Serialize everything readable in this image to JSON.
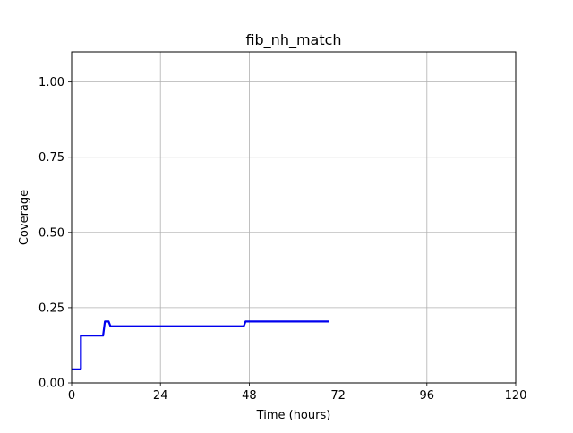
{
  "chart_data": {
    "type": "line",
    "title": "fib_nh_match",
    "xlabel": "Time (hours)",
    "ylabel": "Coverage",
    "xlim": [
      0,
      120
    ],
    "ylim": [
      0,
      1.1
    ],
    "xticks": [
      0,
      24,
      48,
      72,
      96,
      120
    ],
    "xtick_labels": [
      "0",
      "24",
      "48",
      "72",
      "96",
      "120"
    ],
    "yticks": [
      0.0,
      0.25,
      0.5,
      0.75,
      1.0
    ],
    "ytick_labels": [
      "0.00",
      "0.25",
      "0.50",
      "0.75",
      "1.00"
    ],
    "grid": true,
    "series": [
      {
        "color": "#0000ee",
        "x": [
          0,
          2.5,
          2.5,
          8.5,
          9.0,
          10.0,
          10.5,
          46.5,
          47.0,
          69.5
        ],
        "y": [
          0.045,
          0.045,
          0.157,
          0.157,
          0.204,
          0.204,
          0.188,
          0.188,
          0.204,
          0.204
        ]
      }
    ]
  }
}
